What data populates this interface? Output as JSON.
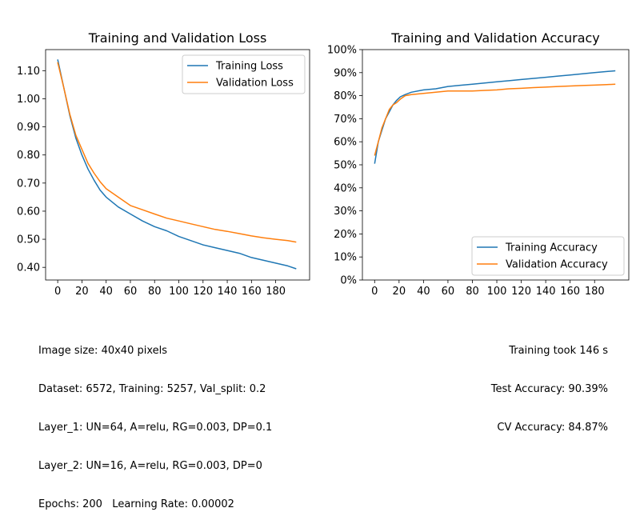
{
  "colors": {
    "training": "#1f77b4",
    "validation": "#ff7f0e"
  },
  "chart_data": [
    {
      "type": "line",
      "title": "Training and Validation Loss",
      "xlabel": "",
      "ylabel": "",
      "xlim": [
        -10,
        208
      ],
      "ylim": [
        0.355,
        1.175
      ],
      "xticks": [
        0,
        20,
        40,
        60,
        80,
        100,
        120,
        140,
        160,
        180
      ],
      "yticks": [
        0.4,
        0.5,
        0.6,
        0.7,
        0.8,
        0.9,
        1.0,
        1.1
      ],
      "ytick_labels": [
        "0.40",
        "0.50",
        "0.60",
        "0.70",
        "0.80",
        "0.90",
        "1.00",
        "1.10"
      ],
      "grid": false,
      "legend": "top-right",
      "x": [
        0,
        5,
        10,
        15,
        20,
        25,
        30,
        35,
        40,
        50,
        60,
        70,
        80,
        90,
        100,
        110,
        120,
        130,
        140,
        150,
        160,
        170,
        180,
        190,
        197
      ],
      "series": [
        {
          "name": "Training Loss",
          "color_key": "training",
          "values": [
            1.14,
            1.04,
            0.94,
            0.86,
            0.8,
            0.75,
            0.71,
            0.675,
            0.65,
            0.615,
            0.59,
            0.565,
            0.545,
            0.53,
            0.51,
            0.495,
            0.48,
            0.47,
            0.46,
            0.45,
            0.435,
            0.425,
            0.415,
            0.405,
            0.395
          ]
        },
        {
          "name": "Validation Loss",
          "color_key": "validation",
          "values": [
            1.13,
            1.04,
            0.945,
            0.87,
            0.82,
            0.77,
            0.735,
            0.705,
            0.68,
            0.65,
            0.62,
            0.605,
            0.59,
            0.575,
            0.565,
            0.555,
            0.545,
            0.535,
            0.528,
            0.52,
            0.512,
            0.505,
            0.5,
            0.495,
            0.49
          ]
        }
      ]
    },
    {
      "type": "line",
      "title": "Training and Validation Accuracy",
      "xlabel": "",
      "ylabel": "",
      "xlim": [
        -10,
        208
      ],
      "ylim": [
        0,
        100
      ],
      "xticks": [
        0,
        20,
        40,
        60,
        80,
        100,
        120,
        140,
        160,
        180
      ],
      "yticks": [
        0,
        10,
        20,
        30,
        40,
        50,
        60,
        70,
        80,
        90,
        100
      ],
      "ytick_labels": [
        "0%",
        "10%",
        "20%",
        "30%",
        "40%",
        "50%",
        "60%",
        "70%",
        "80%",
        "90%",
        "100%"
      ],
      "grid": false,
      "legend": "bottom-right",
      "x": [
        0,
        3,
        6,
        9,
        12,
        15,
        18,
        21,
        25,
        30,
        40,
        50,
        60,
        70,
        80,
        90,
        100,
        110,
        120,
        130,
        140,
        150,
        160,
        170,
        180,
        190,
        197
      ],
      "series": [
        {
          "name": "Training Accuracy",
          "color_key": "training",
          "values": [
            50.5,
            60,
            65,
            70,
            73,
            76,
            78,
            79.5,
            80.5,
            81.5,
            82.5,
            83,
            84,
            84.5,
            85,
            85.5,
            86,
            86.5,
            87,
            87.5,
            88,
            88.5,
            89,
            89.5,
            90,
            90.5,
            90.8
          ]
        },
        {
          "name": "Validation Accuracy",
          "color_key": "validation",
          "values": [
            54,
            60,
            66,
            70,
            74,
            76,
            77,
            78.5,
            80,
            80.5,
            81,
            81.5,
            82,
            82,
            82,
            82.3,
            82.5,
            83,
            83.2,
            83.5,
            83.7,
            84,
            84.2,
            84.4,
            84.6,
            84.8,
            85
          ]
        }
      ]
    }
  ],
  "info_left": [
    "Image size: 40x40 pixels",
    "Dataset: 6572, Training: 5257, Val_split: 0.2",
    "Layer_1: UN=64, A=relu, RG=0.003, DP=0.1",
    "Layer_2: UN=16, A=relu, RG=0.003, DP=0",
    "Epochs: 200   Learning Rate: 0.00002"
  ],
  "info_right": [
    "Training took 146 s",
    "Test Accuracy: 90.39%",
    "CV Accuracy: 84.87%"
  ]
}
